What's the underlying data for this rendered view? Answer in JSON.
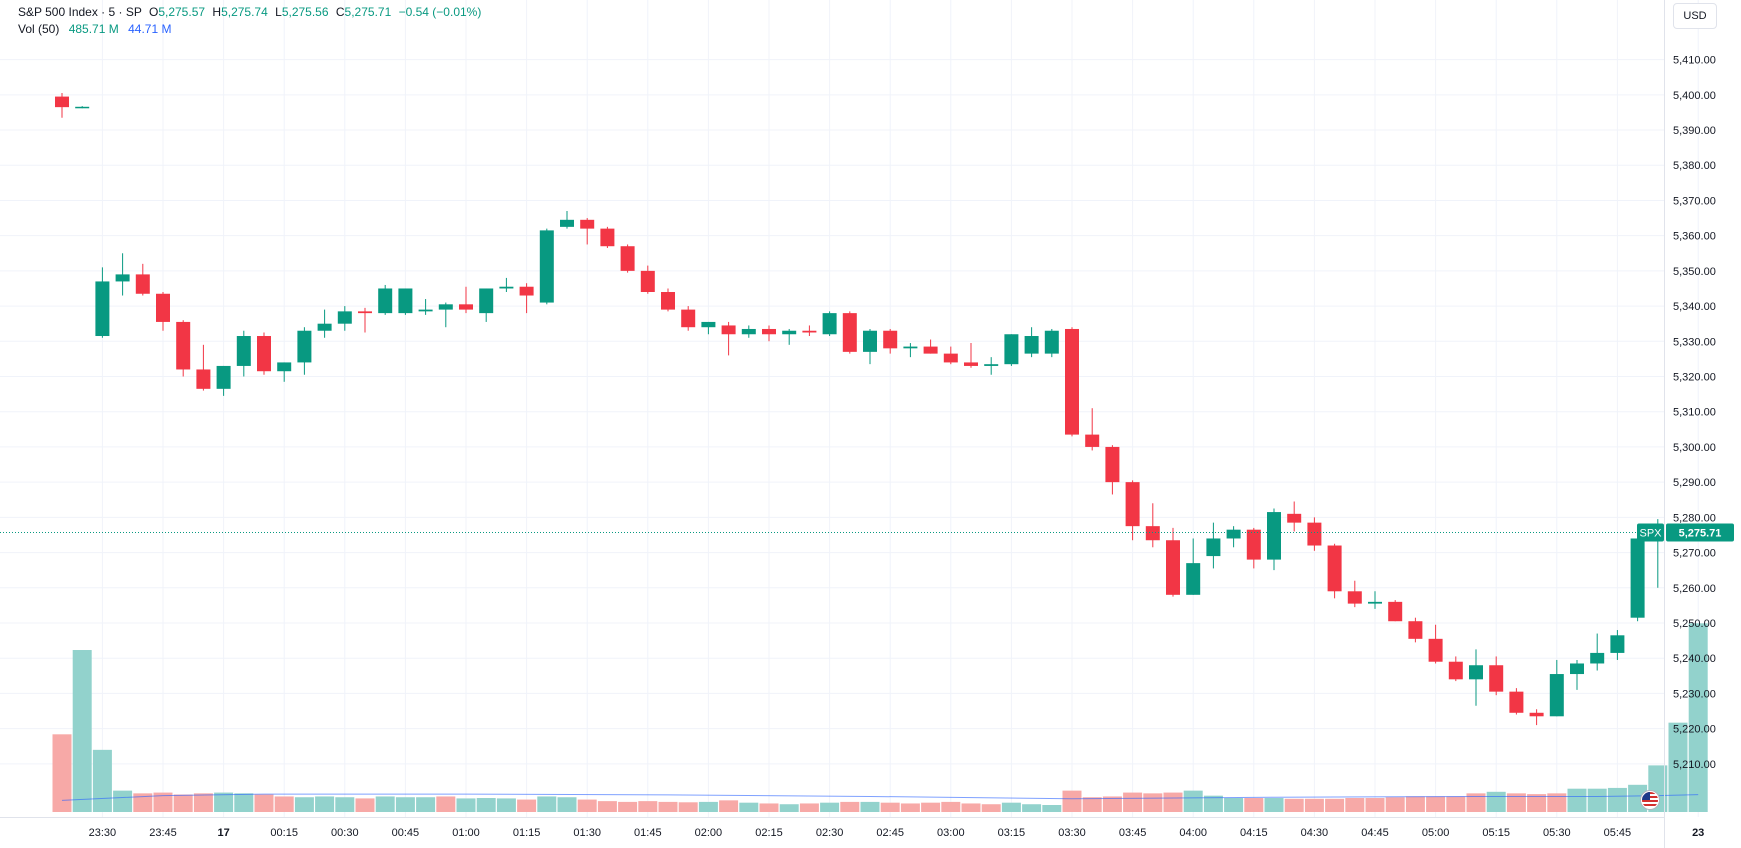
{
  "header": {
    "symbol_title": "S&P 500 Index · 5 · SP",
    "open_label": "O",
    "open_value": "5,275.57",
    "high_label": "H",
    "high_value": "5,275.74",
    "low_label": "L",
    "low_value": "5,275.56",
    "close_label": "C",
    "close_value": "5,275.71",
    "change": "−0.54 (−0.01%)",
    "volume_label": "Vol (50)",
    "volume_value": "485.71 M",
    "volume_ma_value": "44.71 M"
  },
  "currency": "USD",
  "last_price": {
    "ticker": "SPX",
    "price": "5,275.71",
    "value": 5275.71
  },
  "colors": {
    "up": "#089981",
    "down": "#f23645",
    "up_volume": "#92d2cc",
    "down_volume": "#f7a9a7",
    "grid": "#f0f3fa",
    "axis_text": "#131722",
    "volume_ma": "#2962ff",
    "last_price_line": "#089981"
  },
  "chart_data": {
    "type": "candlestick",
    "title": "S&P 500 Index · 5 · SP",
    "interval": "5 minutes",
    "ylim": [
      5202,
      5415
    ],
    "y_ticks": [
      5210,
      5220,
      5230,
      5240,
      5250,
      5260,
      5270,
      5280,
      5290,
      5300,
      5310,
      5320,
      5330,
      5340,
      5350,
      5360,
      5370,
      5380,
      5390,
      5400,
      5410
    ],
    "y_tick_labels": [
      "5,210.00",
      "5,220.00",
      "5,230.00",
      "5,240.00",
      "5,250.00",
      "5,260.00",
      "5,270.00",
      "5,280.00",
      "5,290.00",
      "5,300.00",
      "5,310.00",
      "5,320.00",
      "5,330.00",
      "5,340.00",
      "5,350.00",
      "5,360.00",
      "5,370.00",
      "5,380.00",
      "5,390.00",
      "5,400.00",
      "5,410.00"
    ],
    "x_tick_labels": [
      {
        "bar": 2,
        "label": "23:30"
      },
      {
        "bar": 5,
        "label": "23:45"
      },
      {
        "bar": 8,
        "label": "17"
      },
      {
        "bar": 11,
        "label": "00:15"
      },
      {
        "bar": 14,
        "label": "00:30"
      },
      {
        "bar": 17,
        "label": "00:45"
      },
      {
        "bar": 20,
        "label": "01:00"
      },
      {
        "bar": 23,
        "label": "01:15"
      },
      {
        "bar": 26,
        "label": "01:30"
      },
      {
        "bar": 29,
        "label": "01:45"
      },
      {
        "bar": 32,
        "label": "02:00"
      },
      {
        "bar": 35,
        "label": "02:15"
      },
      {
        "bar": 38,
        "label": "02:30"
      },
      {
        "bar": 41,
        "label": "02:45"
      },
      {
        "bar": 44,
        "label": "03:00"
      },
      {
        "bar": 47,
        "label": "03:15"
      },
      {
        "bar": 50,
        "label": "03:30"
      },
      {
        "bar": 53,
        "label": "03:45"
      },
      {
        "bar": 56,
        "label": "04:00"
      },
      {
        "bar": 59,
        "label": "04:15"
      },
      {
        "bar": 62,
        "label": "04:30"
      },
      {
        "bar": 65,
        "label": "04:45"
      },
      {
        "bar": 68,
        "label": "05:00"
      },
      {
        "bar": 71,
        "label": "05:15"
      },
      {
        "bar": 74,
        "label": "05:30"
      },
      {
        "bar": 77,
        "label": "05:45"
      },
      {
        "bar": 81,
        "label": "23"
      }
    ],
    "candles": [
      {
        "o": 5399.5,
        "h": 5400.5,
        "l": 5393.5,
        "c": 5396.5
      },
      {
        "o": 5396.5,
        "h": 5396.8,
        "l": 5396.2,
        "c": 5396.6
      },
      {
        "o": 5331.5,
        "h": 5351.0,
        "l": 5331.0,
        "c": 5347.0
      },
      {
        "o": 5347.0,
        "h": 5355.0,
        "l": 5343.0,
        "c": 5349.0
      },
      {
        "o": 5349.0,
        "h": 5352.0,
        "l": 5343.0,
        "c": 5343.5
      },
      {
        "o": 5343.5,
        "h": 5344.0,
        "l": 5333.0,
        "c": 5335.5
      },
      {
        "o": 5335.5,
        "h": 5336.0,
        "l": 5320.0,
        "c": 5322.0
      },
      {
        "o": 5322.0,
        "h": 5329.0,
        "l": 5316.0,
        "c": 5316.5
      },
      {
        "o": 5316.5,
        "h": 5323.0,
        "l": 5314.5,
        "c": 5323.0
      },
      {
        "o": 5323.0,
        "h": 5333.0,
        "l": 5320.0,
        "c": 5331.5
      },
      {
        "o": 5331.5,
        "h": 5332.5,
        "l": 5320.5,
        "c": 5321.5
      },
      {
        "o": 5321.5,
        "h": 5324.0,
        "l": 5318.5,
        "c": 5324.0
      },
      {
        "o": 5324.0,
        "h": 5334.0,
        "l": 5320.5,
        "c": 5333.0
      },
      {
        "o": 5333.0,
        "h": 5339.0,
        "l": 5331.0,
        "c": 5335.0
      },
      {
        "o": 5335.0,
        "h": 5340.0,
        "l": 5333.0,
        "c": 5338.5
      },
      {
        "o": 5338.5,
        "h": 5339.5,
        "l": 5332.5,
        "c": 5338.0
      },
      {
        "o": 5338.0,
        "h": 5346.0,
        "l": 5337.5,
        "c": 5345.0
      },
      {
        "o": 5338.0,
        "h": 5345.0,
        "l": 5337.5,
        "c": 5345.0
      },
      {
        "o": 5338.5,
        "h": 5342.0,
        "l": 5337.5,
        "c": 5339.0
      },
      {
        "o": 5339.0,
        "h": 5341.0,
        "l": 5334.0,
        "c": 5340.5
      },
      {
        "o": 5340.5,
        "h": 5345.5,
        "l": 5338.0,
        "c": 5339.0
      },
      {
        "o": 5338.0,
        "h": 5345.0,
        "l": 5335.5,
        "c": 5345.0
      },
      {
        "o": 5345.0,
        "h": 5348.0,
        "l": 5344.0,
        "c": 5345.5
      },
      {
        "o": 5345.5,
        "h": 5346.5,
        "l": 5338.0,
        "c": 5343.0
      },
      {
        "o": 5341.0,
        "h": 5362.0,
        "l": 5340.5,
        "c": 5361.5
      },
      {
        "o": 5362.5,
        "h": 5367.0,
        "l": 5362.0,
        "c": 5364.5
      },
      {
        "o": 5364.5,
        "h": 5365.0,
        "l": 5357.5,
        "c": 5362.0
      },
      {
        "o": 5362.0,
        "h": 5362.5,
        "l": 5356.5,
        "c": 5357.0
      },
      {
        "o": 5357.0,
        "h": 5357.5,
        "l": 5349.5,
        "c": 5350.0
      },
      {
        "o": 5350.0,
        "h": 5351.5,
        "l": 5343.5,
        "c": 5344.0
      },
      {
        "o": 5344.0,
        "h": 5345.0,
        "l": 5338.5,
        "c": 5339.0
      },
      {
        "o": 5339.0,
        "h": 5340.0,
        "l": 5333.0,
        "c": 5334.0
      },
      {
        "o": 5334.0,
        "h": 5335.5,
        "l": 5332.0,
        "c": 5335.5
      },
      {
        "o": 5334.5,
        "h": 5335.5,
        "l": 5326.0,
        "c": 5332.0
      },
      {
        "o": 5332.0,
        "h": 5334.5,
        "l": 5331.0,
        "c": 5333.5
      },
      {
        "o": 5333.5,
        "h": 5334.5,
        "l": 5330.0,
        "c": 5332.0
      },
      {
        "o": 5332.0,
        "h": 5333.5,
        "l": 5329.0,
        "c": 5333.0
      },
      {
        "o": 5333.0,
        "h": 5334.5,
        "l": 5331.5,
        "c": 5332.5
      },
      {
        "o": 5332.0,
        "h": 5338.5,
        "l": 5331.5,
        "c": 5338.0
      },
      {
        "o": 5338.0,
        "h": 5338.5,
        "l": 5326.5,
        "c": 5327.0
      },
      {
        "o": 5327.0,
        "h": 5333.5,
        "l": 5323.5,
        "c": 5333.0
      },
      {
        "o": 5333.0,
        "h": 5333.5,
        "l": 5326.5,
        "c": 5328.0
      },
      {
        "o": 5328.0,
        "h": 5329.5,
        "l": 5325.5,
        "c": 5328.5
      },
      {
        "o": 5328.5,
        "h": 5330.5,
        "l": 5326.5,
        "c": 5326.5
      },
      {
        "o": 5326.5,
        "h": 5328.5,
        "l": 5323.5,
        "c": 5324.0
      },
      {
        "o": 5324.0,
        "h": 5329.5,
        "l": 5322.5,
        "c": 5323.0
      },
      {
        "o": 5323.0,
        "h": 5325.5,
        "l": 5320.5,
        "c": 5323.5
      },
      {
        "o": 5323.5,
        "h": 5332.0,
        "l": 5323.0,
        "c": 5332.0
      },
      {
        "o": 5326.5,
        "h": 5334.0,
        "l": 5325.5,
        "c": 5331.5
      },
      {
        "o": 5326.5,
        "h": 5333.5,
        "l": 5325.5,
        "c": 5333.0
      },
      {
        "o": 5333.5,
        "h": 5334.0,
        "l": 5303.0,
        "c": 5303.5
      },
      {
        "o": 5303.5,
        "h": 5311.0,
        "l": 5299.0,
        "c": 5300.0
      },
      {
        "o": 5300.0,
        "h": 5300.5,
        "l": 5286.5,
        "c": 5290.0
      },
      {
        "o": 5290.0,
        "h": 5290.5,
        "l": 5273.5,
        "c": 5277.5
      },
      {
        "o": 5277.5,
        "h": 5284.0,
        "l": 5271.5,
        "c": 5273.5
      },
      {
        "o": 5273.5,
        "h": 5277.0,
        "l": 5257.5,
        "c": 5258.0
      },
      {
        "o": 5258.0,
        "h": 5274.0,
        "l": 5258.0,
        "c": 5267.0
      },
      {
        "o": 5269.0,
        "h": 5278.5,
        "l": 5265.5,
        "c": 5274.0
      },
      {
        "o": 5274.0,
        "h": 5277.5,
        "l": 5271.5,
        "c": 5276.5
      },
      {
        "o": 5276.5,
        "h": 5277.0,
        "l": 5265.5,
        "c": 5268.0
      },
      {
        "o": 5268.0,
        "h": 5282.5,
        "l": 5265.0,
        "c": 5281.5
      },
      {
        "o": 5281.0,
        "h": 5284.5,
        "l": 5276.0,
        "c": 5278.5
      },
      {
        "o": 5278.5,
        "h": 5280.0,
        "l": 5270.5,
        "c": 5272.0
      },
      {
        "o": 5272.0,
        "h": 5272.5,
        "l": 5257.0,
        "c": 5259.0
      },
      {
        "o": 5259.0,
        "h": 5262.0,
        "l": 5254.5,
        "c": 5255.5
      },
      {
        "o": 5255.5,
        "h": 5259.0,
        "l": 5254.0,
        "c": 5256.0
      },
      {
        "o": 5256.0,
        "h": 5256.5,
        "l": 5250.5,
        "c": 5250.5
      },
      {
        "o": 5250.5,
        "h": 5251.5,
        "l": 5244.5,
        "c": 5245.5
      },
      {
        "o": 5245.5,
        "h": 5249.5,
        "l": 5238.5,
        "c": 5239.0
      },
      {
        "o": 5239.0,
        "h": 5240.5,
        "l": 5233.5,
        "c": 5234.0
      },
      {
        "o": 5234.0,
        "h": 5242.5,
        "l": 5226.5,
        "c": 5238.0
      },
      {
        "o": 5238.0,
        "h": 5240.5,
        "l": 5229.5,
        "c": 5230.5
      },
      {
        "o": 5230.5,
        "h": 5231.5,
        "l": 5224.0,
        "c": 5224.5
      },
      {
        "o": 5224.5,
        "h": 5225.5,
        "l": 5221.0,
        "c": 5223.5
      },
      {
        "o": 5223.5,
        "h": 5239.5,
        "l": 5223.5,
        "c": 5235.5
      },
      {
        "o": 5235.5,
        "h": 5239.5,
        "l": 5231.0,
        "c": 5238.5
      },
      {
        "o": 5238.5,
        "h": 5247.0,
        "l": 5236.5,
        "c": 5241.5
      },
      {
        "o": 5241.5,
        "h": 5248.0,
        "l": 5239.5,
        "c": 5246.5
      },
      {
        "o": 5251.5,
        "h": 5275.5,
        "l": 5250.5,
        "c": 5274.0
      },
      {
        "o": 5274.0,
        "h": 5279.5,
        "l": 5260.0,
        "c": 5276.5
      },
      {
        "o": 5275.57,
        "h": 5275.74,
        "l": 5275.56,
        "c": 5275.71
      }
    ],
    "volume_ymax": 520,
    "volume": [
      {
        "v": 200,
        "up": false
      },
      {
        "v": 417,
        "up": true
      },
      {
        "v": 160,
        "up": true
      },
      {
        "v": 55,
        "up": true
      },
      {
        "v": 48,
        "up": false
      },
      {
        "v": 50,
        "up": false
      },
      {
        "v": 45,
        "up": false
      },
      {
        "v": 48,
        "up": false
      },
      {
        "v": 50,
        "up": true
      },
      {
        "v": 48,
        "up": true
      },
      {
        "v": 45,
        "up": false
      },
      {
        "v": 40,
        "up": false
      },
      {
        "v": 38,
        "up": true
      },
      {
        "v": 40,
        "up": true
      },
      {
        "v": 38,
        "up": true
      },
      {
        "v": 35,
        "up": false
      },
      {
        "v": 40,
        "up": true
      },
      {
        "v": 38,
        "up": true
      },
      {
        "v": 38,
        "up": true
      },
      {
        "v": 40,
        "up": false
      },
      {
        "v": 35,
        "up": true
      },
      {
        "v": 36,
        "up": true
      },
      {
        "v": 35,
        "up": true
      },
      {
        "v": 32,
        "up": false
      },
      {
        "v": 40,
        "up": true
      },
      {
        "v": 38,
        "up": true
      },
      {
        "v": 32,
        "up": false
      },
      {
        "v": 28,
        "up": false
      },
      {
        "v": 26,
        "up": false
      },
      {
        "v": 28,
        "up": false
      },
      {
        "v": 26,
        "up": false
      },
      {
        "v": 25,
        "up": false
      },
      {
        "v": 26,
        "up": true
      },
      {
        "v": 30,
        "up": false
      },
      {
        "v": 24,
        "up": true
      },
      {
        "v": 22,
        "up": false
      },
      {
        "v": 20,
        "up": true
      },
      {
        "v": 22,
        "up": false
      },
      {
        "v": 24,
        "up": true
      },
      {
        "v": 26,
        "up": false
      },
      {
        "v": 26,
        "up": true
      },
      {
        "v": 24,
        "up": false
      },
      {
        "v": 22,
        "up": false
      },
      {
        "v": 24,
        "up": false
      },
      {
        "v": 26,
        "up": false
      },
      {
        "v": 22,
        "up": false
      },
      {
        "v": 20,
        "up": false
      },
      {
        "v": 24,
        "up": true
      },
      {
        "v": 20,
        "up": true
      },
      {
        "v": 18,
        "up": true
      },
      {
        "v": 55,
        "up": false
      },
      {
        "v": 38,
        "up": false
      },
      {
        "v": 40,
        "up": false
      },
      {
        "v": 50,
        "up": false
      },
      {
        "v": 48,
        "up": false
      },
      {
        "v": 50,
        "up": false
      },
      {
        "v": 55,
        "up": true
      },
      {
        "v": 42,
        "up": true
      },
      {
        "v": 36,
        "up": true
      },
      {
        "v": 36,
        "up": false
      },
      {
        "v": 36,
        "up": true
      },
      {
        "v": 34,
        "up": false
      },
      {
        "v": 34,
        "up": false
      },
      {
        "v": 34,
        "up": false
      },
      {
        "v": 36,
        "up": false
      },
      {
        "v": 36,
        "up": false
      },
      {
        "v": 38,
        "up": false
      },
      {
        "v": 40,
        "up": false
      },
      {
        "v": 40,
        "up": false
      },
      {
        "v": 40,
        "up": false
      },
      {
        "v": 48,
        "up": false
      },
      {
        "v": 52,
        "up": true
      },
      {
        "v": 48,
        "up": false
      },
      {
        "v": 46,
        "up": false
      },
      {
        "v": 48,
        "up": false
      },
      {
        "v": 60,
        "up": true
      },
      {
        "v": 60,
        "up": true
      },
      {
        "v": 62,
        "up": true
      },
      {
        "v": 70,
        "up": true
      },
      {
        "v": 120,
        "up": true
      },
      {
        "v": 230,
        "up": true
      },
      {
        "v": 485.71,
        "up": true
      }
    ],
    "volume_ma": [
      {
        "bar": 0,
        "v": 30
      },
      {
        "bar": 5,
        "v": 42
      },
      {
        "bar": 10,
        "v": 46
      },
      {
        "bar": 20,
        "v": 46
      },
      {
        "bar": 30,
        "v": 44
      },
      {
        "bar": 40,
        "v": 40
      },
      {
        "bar": 50,
        "v": 34
      },
      {
        "bar": 60,
        "v": 38
      },
      {
        "bar": 70,
        "v": 40
      },
      {
        "bar": 76,
        "v": 40
      },
      {
        "bar": 79,
        "v": 42
      },
      {
        "bar": 81,
        "v": 44.71
      }
    ]
  }
}
